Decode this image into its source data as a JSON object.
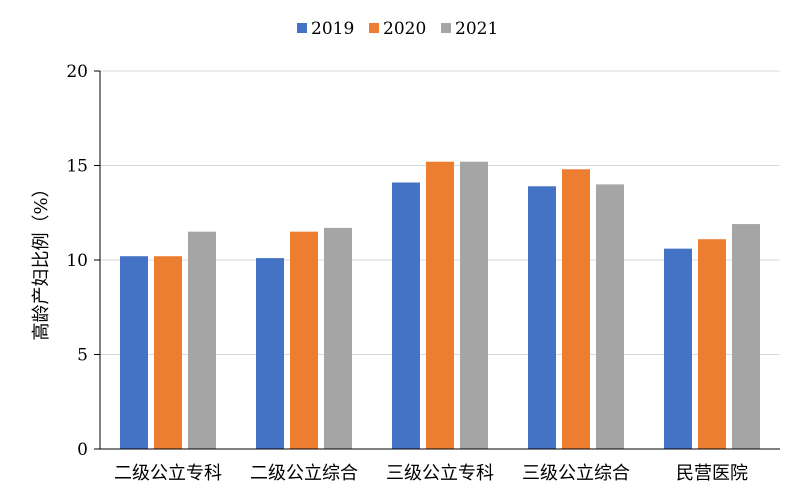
{
  "chart_data": {
    "type": "bar",
    "categories": [
      "二级公立专科",
      "二级公立综合",
      "三级公立专科",
      "三级公立综合",
      "民营医院"
    ],
    "series": [
      {
        "name": "2019",
        "color": "#4472C4",
        "values": [
          10.2,
          10.1,
          14.1,
          13.9,
          10.6
        ]
      },
      {
        "name": "2020",
        "color": "#ED7D31",
        "values": [
          10.2,
          11.5,
          15.2,
          14.8,
          11.1
        ]
      },
      {
        "name": "2021",
        "color": "#A5A5A5",
        "values": [
          11.5,
          11.7,
          15.2,
          14.0,
          11.9
        ]
      }
    ],
    "ylabel": "高龄产妇比例（%）",
    "xlabel": "",
    "title": "",
    "ylim": [
      0,
      20
    ],
    "yticks": [
      0,
      5,
      10,
      15,
      20
    ],
    "grid": true,
    "legend_position": "top-center"
  }
}
